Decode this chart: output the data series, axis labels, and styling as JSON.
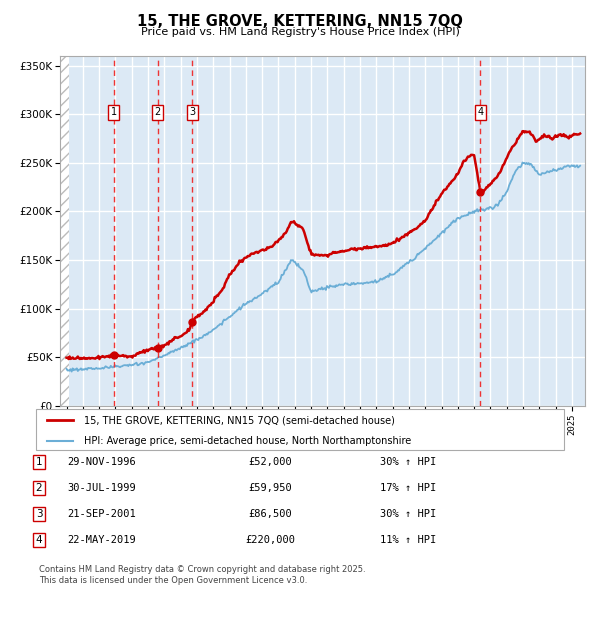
{
  "title": "15, THE GROVE, KETTERING, NN15 7QQ",
  "subtitle": "Price paid vs. HM Land Registry's House Price Index (HPI)",
  "transactions": [
    {
      "num": 1,
      "date": "29-NOV-1996",
      "price": 52000,
      "pct": "30%",
      "direction": "↑",
      "date_x": 1996.91
    },
    {
      "num": 2,
      "date": "30-JUL-1999",
      "price": 59950,
      "pct": "17%",
      "direction": "↑",
      "date_x": 1999.58
    },
    {
      "num": 3,
      "date": "21-SEP-2001",
      "price": 86500,
      "pct": "30%",
      "direction": "↑",
      "date_x": 2001.72
    },
    {
      "num": 4,
      "date": "22-MAY-2019",
      "price": 220000,
      "pct": "11%",
      "direction": "↑",
      "date_x": 2019.38
    }
  ],
  "hpi_color": "#6baed6",
  "price_color": "#cc0000",
  "marker_color": "#cc0000",
  "vline_color": "#ee3333",
  "background_color": "#dce9f5",
  "grid_color": "#ffffff",
  "ylim": [
    0,
    360000
  ],
  "yticks": [
    0,
    50000,
    100000,
    150000,
    200000,
    250000,
    300000,
    350000
  ],
  "xlim_start": 1993.6,
  "xlim_end": 2025.8,
  "footer": "Contains HM Land Registry data © Crown copyright and database right 2025.\nThis data is licensed under the Open Government Licence v3.0.",
  "legend_label_price": "15, THE GROVE, KETTERING, NN15 7QQ (semi-detached house)",
  "legend_label_hpi": "HPI: Average price, semi-detached house, North Northamptonshire"
}
